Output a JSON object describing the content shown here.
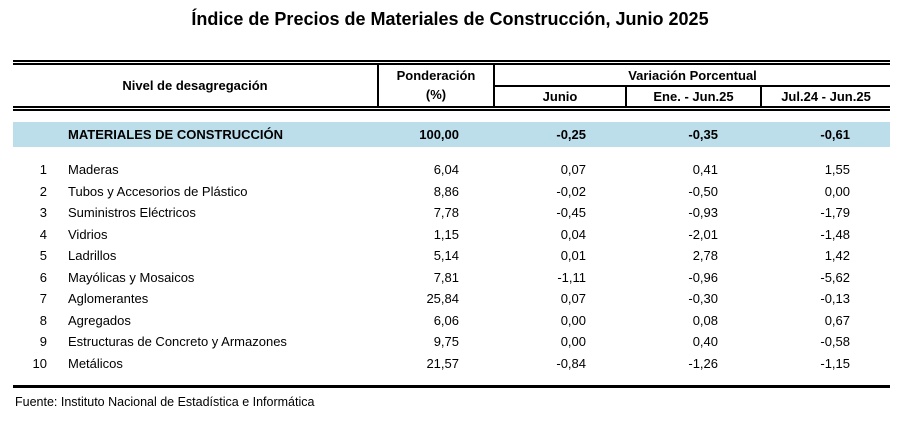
{
  "title": "Índice de Precios de Materiales de Construcción, Junio 2025",
  "colors": {
    "highlight": "#bcdeea",
    "rule": "#000000"
  },
  "table": {
    "header": {
      "level_label": "Nivel de desagregación",
      "weight_line1": "Ponderación",
      "weight_line2": "(%)",
      "variation_group": "Variación Porcentual",
      "col_junio": "Junio",
      "col_ene_jun": "Ene. - Jun.25",
      "col_jul_jun": "Jul.24 - Jun.25"
    },
    "summary_row": {
      "label": "MATERIALES DE CONSTRUCCIÓN",
      "weight": "100,00",
      "junio": "-0,25",
      "ene_jun": "-0,35",
      "jul_jun": "-0,61"
    },
    "rows": [
      {
        "num": "1",
        "label": "Maderas",
        "weight": "6,04",
        "junio": "0,07",
        "ene_jun": "0,41",
        "jul_jun": "1,55"
      },
      {
        "num": "2",
        "label": "Tubos y Accesorios de Plástico",
        "weight": "8,86",
        "junio": "-0,02",
        "ene_jun": "-0,50",
        "jul_jun": "0,00"
      },
      {
        "num": "3",
        "label": "Suministros Eléctricos",
        "weight": "7,78",
        "junio": "-0,45",
        "ene_jun": "-0,93",
        "jul_jun": "-1,79"
      },
      {
        "num": "4",
        "label": "Vidrios",
        "weight": "1,15",
        "junio": "0,04",
        "ene_jun": "-2,01",
        "jul_jun": "-1,48"
      },
      {
        "num": "5",
        "label": "Ladrillos",
        "weight": "5,14",
        "junio": "0,01",
        "ene_jun": "2,78",
        "jul_jun": "1,42"
      },
      {
        "num": "6",
        "label": "Mayólicas y Mosaicos",
        "weight": "7,81",
        "junio": "-1,11",
        "ene_jun": "-0,96",
        "jul_jun": "-5,62"
      },
      {
        "num": "7",
        "label": "Aglomerantes",
        "weight": "25,84",
        "junio": "0,07",
        "ene_jun": "-0,30",
        "jul_jun": "-0,13"
      },
      {
        "num": "8",
        "label": "Agregados",
        "weight": "6,06",
        "junio": "0,00",
        "ene_jun": "0,08",
        "jul_jun": "0,67"
      },
      {
        "num": "9",
        "label": "Estructuras de Concreto y Armazones",
        "weight": "9,75",
        "junio": "0,00",
        "ene_jun": "0,40",
        "jul_jun": "-0,58"
      },
      {
        "num": "10",
        "label": "Metálicos",
        "weight": "21,57",
        "junio": "-0,84",
        "ene_jun": "-1,26",
        "jul_jun": "-1,15"
      }
    ]
  },
  "footer": {
    "source": "Fuente: Instituto Nacional de Estadística e Informática"
  }
}
